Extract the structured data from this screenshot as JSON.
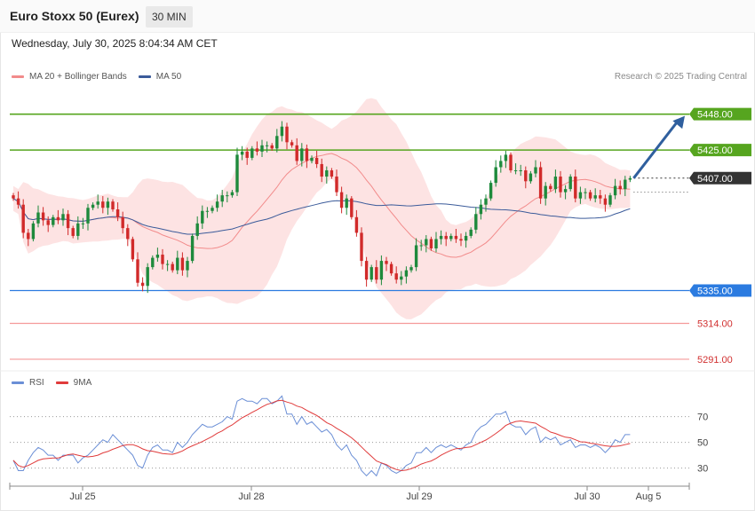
{
  "header": {
    "title": "Euro Stoxx 50 (Eurex)",
    "timeframe": "30 MIN",
    "datetime": "Wednesday, July 30, 2025 8:04:34 AM CET",
    "copyright": "Research © 2025 Trading Central"
  },
  "colors": {
    "candle_up": "#1e8a3c",
    "candle_down": "#d12a2a",
    "bollinger_fill": "#fde3e3",
    "ma20": "#f28b8b",
    "ma50": "#3b5b9a",
    "resistance": "#56a51f",
    "pivot": "#2b7be0",
    "support": "#f59a9a",
    "current": "#333333",
    "arrow": "#2f5f9e",
    "rsi": "#6b8fd6",
    "rsi_ma": "#e03b3b"
  },
  "chart_data": [
    {
      "type": "candlestick",
      "legend": [
        {
          "name": "MA 20 + Bollinger Bands",
          "color": "#f28b8b"
        },
        {
          "name": "MA 50",
          "color": "#3b5b9a"
        }
      ],
      "ylim": [
        5287,
        5462
      ],
      "x_ticks": [
        "Jul 25",
        "Jul 28",
        "Jul 29",
        "Jul 30",
        "Aug 5"
      ],
      "levels": [
        {
          "value": 5448.0,
          "label": "5448.00",
          "kind": "resistance"
        },
        {
          "value": 5425.0,
          "label": "5425.00",
          "kind": "resistance"
        },
        {
          "value": 5407.0,
          "label": "5407.00",
          "kind": "current"
        },
        {
          "value": 5335.0,
          "label": "5335.00",
          "kind": "pivot"
        },
        {
          "value": 5314.0,
          "label": "5314.00",
          "kind": "support"
        },
        {
          "value": 5291.0,
          "label": "5291.00",
          "kind": "support"
        }
      ],
      "close": [
        5394,
        5390,
        5372,
        5368,
        5378,
        5385,
        5380,
        5377,
        5382,
        5380,
        5384,
        5375,
        5370,
        5378,
        5378,
        5388,
        5390,
        5392,
        5388,
        5392,
        5387,
        5382,
        5375,
        5368,
        5355,
        5340,
        5338,
        5350,
        5356,
        5358,
        5352,
        5352,
        5348,
        5356,
        5348,
        5354,
        5370,
        5378,
        5386,
        5386,
        5388,
        5392,
        5396,
        5396,
        5398,
        5422,
        5424,
        5420,
        5426,
        5424,
        5428,
        5428,
        5426,
        5434,
        5440,
        5430,
        5428,
        5418,
        5426,
        5418,
        5420,
        5416,
        5408,
        5412,
        5408,
        5398,
        5388,
        5394,
        5382,
        5372,
        5354,
        5342,
        5350,
        5342,
        5354,
        5352,
        5346,
        5342,
        5344,
        5348,
        5350,
        5364,
        5364,
        5368,
        5362,
        5368,
        5370,
        5368,
        5370,
        5368,
        5367,
        5370,
        5374,
        5384,
        5390,
        5394,
        5404,
        5414,
        5418,
        5422,
        5412,
        5412,
        5412,
        5405,
        5410,
        5414,
        5394,
        5402,
        5400,
        5408,
        5398,
        5400,
        5408,
        5394,
        5398,
        5398,
        5394,
        5396,
        5394,
        5390,
        5396,
        5402,
        5400,
        5406,
        5407
      ],
      "rsi": {
        "legend": [
          {
            "name": "RSI",
            "color": "#6b8fd6"
          },
          {
            "name": "9MA",
            "color": "#e03b3b"
          }
        ],
        "ticks": [
          70,
          50,
          30
        ],
        "ylim": [
          18,
          87
        ],
        "values": [
          36,
          28,
          28,
          36,
          42,
          46,
          44,
          40,
          40,
          36,
          40,
          40,
          40,
          34,
          38,
          40,
          44,
          48,
          52,
          50,
          56,
          52,
          48,
          44,
          40,
          32,
          30,
          40,
          46,
          48,
          44,
          44,
          42,
          50,
          46,
          50,
          56,
          60,
          64,
          62,
          62,
          64,
          66,
          70,
          68,
          82,
          84,
          82,
          82,
          80,
          84,
          84,
          80,
          82,
          86,
          72,
          72,
          64,
          70,
          64,
          66,
          62,
          58,
          60,
          56,
          48,
          44,
          48,
          40,
          36,
          28,
          24,
          28,
          24,
          34,
          32,
          28,
          26,
          28,
          32,
          34,
          42,
          42,
          46,
          42,
          46,
          48,
          46,
          48,
          46,
          44,
          48,
          50,
          58,
          62,
          64,
          68,
          72,
          72,
          74,
          64,
          62,
          62,
          56,
          60,
          62,
          50,
          54,
          52,
          54,
          48,
          50,
          52,
          46,
          48,
          48,
          46,
          48,
          46,
          42,
          46,
          52,
          50,
          56,
          56
        ]
      }
    }
  ]
}
